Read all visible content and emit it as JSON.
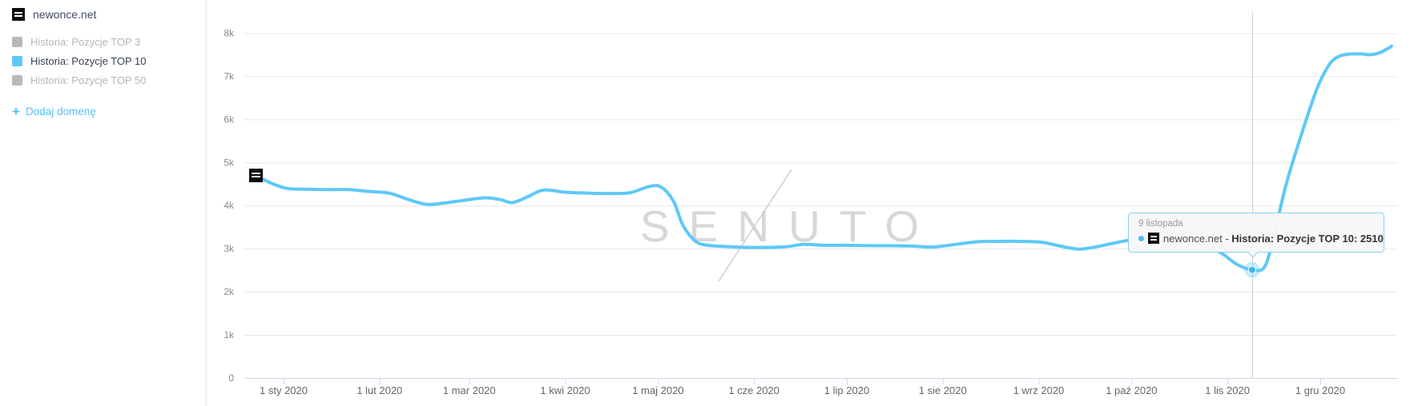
{
  "sidebar": {
    "domain": "newonce.net",
    "legend": [
      {
        "label": "Historia: Pozycje TOP 3",
        "color": "#b6b8ba",
        "active": false
      },
      {
        "label": "Historia: Pozycje TOP 10",
        "color": "#5ec8f7",
        "active": true
      },
      {
        "label": "Historia: Pozycje TOP 50",
        "color": "#b6b8ba",
        "active": false
      }
    ],
    "add_domain": {
      "plus": "+",
      "label": "Dodaj domenę"
    }
  },
  "watermark": "SENUTO",
  "tooltip": {
    "date": "9 listopada",
    "series_prefix": "newonce.net - ",
    "series_bold": "Historia: Pozycje TOP 10: 2510"
  },
  "colors": {
    "line": "#5ec8f7",
    "accent_link": "#53c1f6",
    "axis": "#ccd6eb",
    "gridline": "#e7e7e7",
    "crosshair": "#cfcfcf",
    "tick_label_x": "#666666",
    "tick_label_y": "#8a8a8a",
    "watermark": "#d7d7d7",
    "tooltip_border": "#86d2f4",
    "halo": "rgba(94,200,247,0.35)",
    "dot": "#41b4ee"
  },
  "chart_data": {
    "type": "line",
    "title": "",
    "xlabel": "",
    "ylabel": "",
    "ylim": [
      0,
      8400
    ],
    "grid": true,
    "legend_position": "left-sidebar",
    "series": [
      {
        "name": "newonce.net - Historia: Pozycje TOP 10",
        "color": "#5ec8f7",
        "points": [
          [
            "2019-12-23",
            4700
          ],
          [
            "2019-12-28",
            4520
          ],
          [
            "2020-01-02",
            4400
          ],
          [
            "2020-01-08",
            4380
          ],
          [
            "2020-01-15",
            4370
          ],
          [
            "2020-01-22",
            4370
          ],
          [
            "2020-01-28",
            4330
          ],
          [
            "2020-02-04",
            4290
          ],
          [
            "2020-02-10",
            4150
          ],
          [
            "2020-02-16",
            4030
          ],
          [
            "2020-02-22",
            4060
          ],
          [
            "2020-02-28",
            4120
          ],
          [
            "2020-03-06",
            4180
          ],
          [
            "2020-03-11",
            4140
          ],
          [
            "2020-03-15",
            4070
          ],
          [
            "2020-03-20",
            4210
          ],
          [
            "2020-03-25",
            4360
          ],
          [
            "2020-04-01",
            4310
          ],
          [
            "2020-04-08",
            4290
          ],
          [
            "2020-04-15",
            4280
          ],
          [
            "2020-04-22",
            4300
          ],
          [
            "2020-04-28",
            4440
          ],
          [
            "2020-05-02",
            4430
          ],
          [
            "2020-05-06",
            4100
          ],
          [
            "2020-05-09",
            3550
          ],
          [
            "2020-05-13",
            3180
          ],
          [
            "2020-05-17",
            3080
          ],
          [
            "2020-05-23",
            3050
          ],
          [
            "2020-05-30",
            3030
          ],
          [
            "2020-06-06",
            3030
          ],
          [
            "2020-06-12",
            3050
          ],
          [
            "2020-06-17",
            3100
          ],
          [
            "2020-06-24",
            3080
          ],
          [
            "2020-07-01",
            3080
          ],
          [
            "2020-07-08",
            3070
          ],
          [
            "2020-07-15",
            3070
          ],
          [
            "2020-07-22",
            3060
          ],
          [
            "2020-07-29",
            3040
          ],
          [
            "2020-08-05",
            3100
          ],
          [
            "2020-08-12",
            3160
          ],
          [
            "2020-08-19",
            3170
          ],
          [
            "2020-08-26",
            3170
          ],
          [
            "2020-09-02",
            3150
          ],
          [
            "2020-09-08",
            3060
          ],
          [
            "2020-09-14",
            2990
          ],
          [
            "2020-09-20",
            3050
          ],
          [
            "2020-09-26",
            3140
          ],
          [
            "2020-10-03",
            3220
          ],
          [
            "2020-10-10",
            3180
          ],
          [
            "2020-10-17",
            3150
          ],
          [
            "2020-10-24",
            3100
          ],
          [
            "2020-10-30",
            2900
          ],
          [
            "2020-11-04",
            2640
          ],
          [
            "2020-11-09",
            2510
          ],
          [
            "2020-11-13",
            2580
          ],
          [
            "2020-11-16",
            3300
          ],
          [
            "2020-11-20",
            4500
          ],
          [
            "2020-11-25",
            5670
          ],
          [
            "2020-11-30",
            6720
          ],
          [
            "2020-12-04",
            7280
          ],
          [
            "2020-12-07",
            7460
          ],
          [
            "2020-12-10",
            7510
          ],
          [
            "2020-12-14",
            7520
          ],
          [
            "2020-12-17",
            7500
          ],
          [
            "2020-12-20",
            7540
          ],
          [
            "2020-12-23",
            7650
          ],
          [
            "2020-12-24",
            7700
          ]
        ]
      }
    ],
    "x_ticks": [
      {
        "date": "2020-01-01",
        "label": "1 sty 2020"
      },
      {
        "date": "2020-02-01",
        "label": "1 lut 2020"
      },
      {
        "date": "2020-03-01",
        "label": "1 mar 2020"
      },
      {
        "date": "2020-04-01",
        "label": "1 kwi 2020"
      },
      {
        "date": "2020-05-01",
        "label": "1 maj 2020"
      },
      {
        "date": "2020-06-01",
        "label": "1 cze 2020"
      },
      {
        "date": "2020-07-01",
        "label": "1 lip 2020"
      },
      {
        "date": "2020-08-01",
        "label": "1 sie 2020"
      },
      {
        "date": "2020-09-01",
        "label": "1 wrz 2020"
      },
      {
        "date": "2020-10-01",
        "label": "1 paź 2020"
      },
      {
        "date": "2020-11-01",
        "label": "1 lis 2020"
      },
      {
        "date": "2020-12-01",
        "label": "1 gru 2020"
      }
    ],
    "y_ticks": [
      {
        "value": 0,
        "label": "0"
      },
      {
        "value": 1000,
        "label": "1k"
      },
      {
        "value": 2000,
        "label": "2k"
      },
      {
        "value": 3000,
        "label": "3k"
      },
      {
        "value": 4000,
        "label": "4k"
      },
      {
        "value": 5000,
        "label": "5k"
      },
      {
        "value": 6000,
        "label": "6k"
      },
      {
        "value": 7000,
        "label": "7k"
      },
      {
        "value": 8000,
        "label": "8k"
      }
    ],
    "highlight": {
      "date": "2020-11-09",
      "value": 2510
    }
  }
}
